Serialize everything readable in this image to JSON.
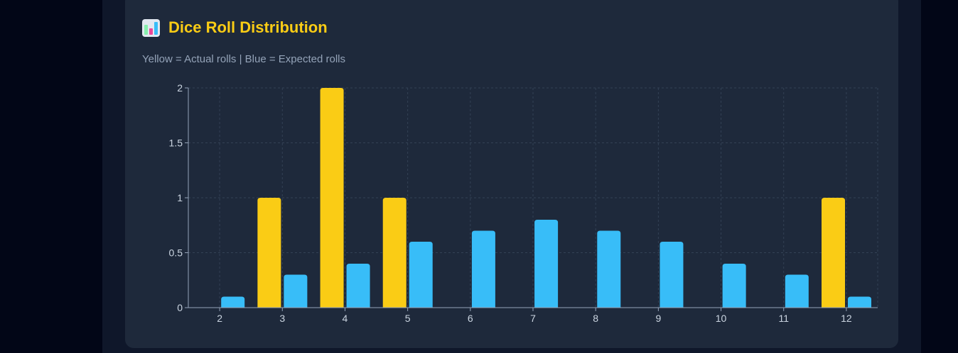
{
  "header": {
    "icon": "bar-chart-icon",
    "title": "Dice Roll Distribution",
    "subtitle": "Yellow = Actual rolls | Blue = Expected rolls"
  },
  "colors": {
    "actual": "#facc15",
    "expected": "#38bdf8"
  },
  "chart_data": {
    "type": "bar",
    "categories": [
      "2",
      "3",
      "4",
      "5",
      "6",
      "7",
      "8",
      "9",
      "10",
      "11",
      "12"
    ],
    "series": [
      {
        "values": [
          0,
          1,
          2,
          1,
          0,
          0,
          0,
          0,
          0,
          0,
          1
        ]
      },
      {
        "values": [
          0.1,
          0.3,
          0.4,
          0.6,
          0.7,
          0.8,
          0.7,
          0.6,
          0.4,
          0.3,
          0.1
        ]
      }
    ],
    "yticks": [
      "0",
      "0.5",
      "1",
      "1.5",
      "2"
    ],
    "ylim": [
      0,
      2
    ],
    "grid": true,
    "legend": "none"
  }
}
